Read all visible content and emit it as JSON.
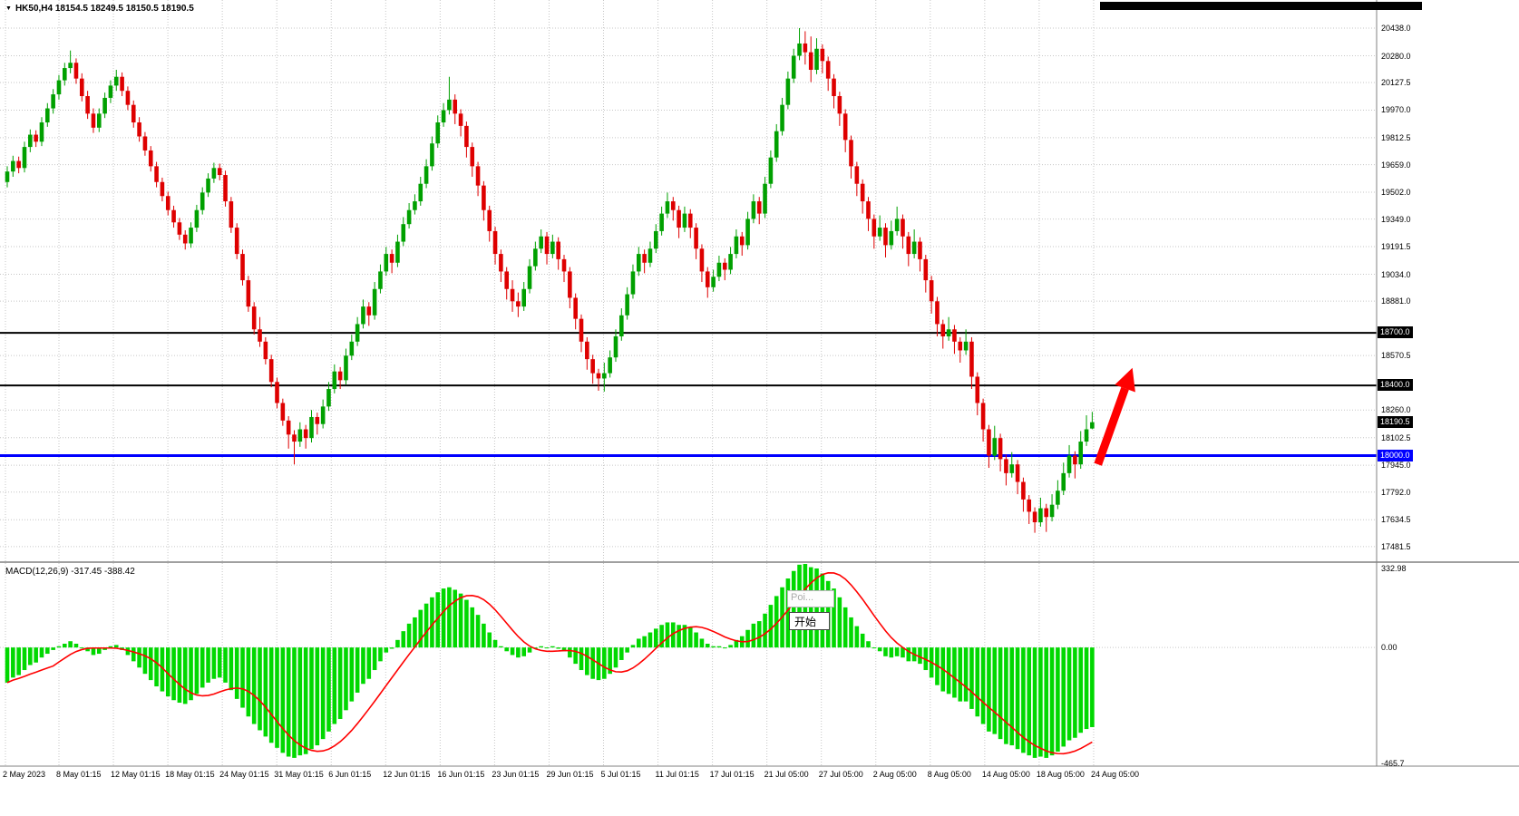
{
  "window": {
    "title": "HK50,H4 18154.5 18249.5 18150.5 18190.5",
    "dropdown_icon": "▼"
  },
  "popup": {
    "suggestion": "Poi...",
    "start_label": "开始"
  },
  "chart_data": {
    "type": "candlestick",
    "title": "HK50,H4",
    "symbol": "HK50",
    "timeframe": "H4",
    "last_ohlc": {
      "open": 18154.5,
      "high": 18249.5,
      "low": 18150.5,
      "close": 18190.5
    },
    "grid": true,
    "price_axis": {
      "ylim": [
        17403,
        20598
      ],
      "ticks": [
        "20438.0",
        "20280.0",
        "20127.5",
        "19970.0",
        "19812.5",
        "19659.0",
        "19502.0",
        "19349.0",
        "19191.5",
        "19034.0",
        "18881.0",
        "18570.5",
        "18260.0",
        "18102.5",
        "17945.0",
        "17792.0",
        "17634.5",
        "17481.5"
      ]
    },
    "time_axis": {
      "labels": [
        "2 May 2023",
        "8 May 01:15",
        "12 May 01:15",
        "18 May 01:15",
        "24 May 01:15",
        "31 May 01:15",
        "6 Jun 01:15",
        "12 Jun 01:15",
        "16 Jun 01:15",
        "23 Jun 01:15",
        "29 Jun 01:15",
        "5 Jul 01:15",
        "11 Jul 01:15",
        "17 Jul 01:15",
        "21 Jul 05:00",
        "27 Jul 05:00",
        "2 Aug 05:00",
        "8 Aug 05:00",
        "14 Aug 05:00",
        "18 Aug 05:00",
        "24 Aug 05:00"
      ]
    },
    "price_lines": [
      {
        "value": 18700,
        "label": "18700.0",
        "color": "#000000",
        "width": 2
      },
      {
        "value": 18400,
        "label": "18400.0",
        "color": "#000000",
        "width": 2
      },
      {
        "value": 18000,
        "label": "18000.0",
        "color": "#0000FF",
        "width": 3
      }
    ],
    "current_price": {
      "value": 18190.5,
      "label": "18190.5",
      "badge_color": "#000000"
    },
    "colors": {
      "bull": "#00A000",
      "bear": "#DE0000",
      "hist": "#00D800",
      "signal": "#FF0000",
      "grid": "#C6C6C6",
      "border": "#808080",
      "arrow": "#FF0000"
    },
    "annotations": {
      "arrow": {
        "type": "up-arrow",
        "color": "#FF0000",
        "from": {
          "bar": 190,
          "price": 17950
        },
        "to": {
          "bar": 196,
          "price": 18500
        }
      }
    },
    "candles": [
      [
        19560,
        19650,
        19530,
        19620
      ],
      [
        19620,
        19710,
        19590,
        19680
      ],
      [
        19680,
        19705,
        19610,
        19640
      ],
      [
        19640,
        19790,
        19615,
        19760
      ],
      [
        19760,
        19860,
        19730,
        19830
      ],
      [
        19830,
        19855,
        19760,
        19790
      ],
      [
        19790,
        19930,
        19765,
        19900
      ],
      [
        19900,
        20010,
        19875,
        19980
      ],
      [
        19980,
        20090,
        19950,
        20060
      ],
      [
        20060,
        20170,
        20030,
        20140
      ],
      [
        20140,
        20240,
        20110,
        20210
      ],
      [
        20210,
        20310,
        20180,
        20240
      ],
      [
        20240,
        20265,
        20120,
        20150
      ],
      [
        20150,
        20180,
        20020,
        20050
      ],
      [
        20050,
        20080,
        19920,
        19950
      ],
      [
        19950,
        19980,
        19840,
        19870
      ],
      [
        19870,
        19980,
        19845,
        19950
      ],
      [
        19950,
        20070,
        19925,
        20040
      ],
      [
        20040,
        20140,
        20010,
        20110
      ],
      [
        20110,
        20200,
        20080,
        20160
      ],
      [
        20160,
        20185,
        20050,
        20080
      ],
      [
        20080,
        20105,
        19970,
        20000
      ],
      [
        20000,
        20025,
        19870,
        19900
      ],
      [
        19900,
        19930,
        19790,
        19820
      ],
      [
        19820,
        19845,
        19710,
        19740
      ],
      [
        19740,
        19765,
        19620,
        19650
      ],
      [
        19650,
        19675,
        19530,
        19560
      ],
      [
        19560,
        19585,
        19450,
        19480
      ],
      [
        19480,
        19505,
        19370,
        19400
      ],
      [
        19400,
        19425,
        19300,
        19330
      ],
      [
        19330,
        19355,
        19230,
        19260
      ],
      [
        19260,
        19285,
        19175,
        19210
      ],
      [
        19210,
        19330,
        19185,
        19300
      ],
      [
        19300,
        19430,
        19275,
        19400
      ],
      [
        19400,
        19530,
        19375,
        19500
      ],
      [
        19500,
        19610,
        19475,
        19580
      ],
      [
        19580,
        19670,
        19555,
        19640
      ],
      [
        19640,
        19665,
        19570,
        19600
      ],
      [
        19600,
        19625,
        19420,
        19450
      ],
      [
        19450,
        19475,
        19270,
        19300
      ],
      [
        19300,
        19325,
        19120,
        19150
      ],
      [
        19150,
        19175,
        18970,
        19000
      ],
      [
        19000,
        19025,
        18820,
        18850
      ],
      [
        18850,
        18875,
        18690,
        18720
      ],
      [
        18720,
        18790,
        18620,
        18650
      ],
      [
        18650,
        18675,
        18520,
        18550
      ],
      [
        18550,
        18575,
        18390,
        18420
      ],
      [
        18420,
        18445,
        18270,
        18300
      ],
      [
        18300,
        18325,
        18170,
        18200
      ],
      [
        18200,
        18225,
        18040,
        18120
      ],
      [
        18120,
        18145,
        17950,
        18080
      ],
      [
        18080,
        18190,
        18050,
        18150
      ],
      [
        18150,
        18175,
        18040,
        18100
      ],
      [
        18100,
        18260,
        18075,
        18220
      ],
      [
        18220,
        18245,
        18120,
        18180
      ],
      [
        18180,
        18320,
        18155,
        18280
      ],
      [
        18280,
        18420,
        18255,
        18380
      ],
      [
        18380,
        18520,
        18355,
        18480
      ],
      [
        18480,
        18505,
        18380,
        18430
      ],
      [
        18430,
        18610,
        18405,
        18570
      ],
      [
        18570,
        18690,
        18545,
        18650
      ],
      [
        18650,
        18790,
        18625,
        18750
      ],
      [
        18750,
        18890,
        18725,
        18850
      ],
      [
        18850,
        18875,
        18740,
        18800
      ],
      [
        18800,
        18990,
        18775,
        18950
      ],
      [
        18950,
        19090,
        18925,
        19050
      ],
      [
        19050,
        19190,
        19025,
        19150
      ],
      [
        19150,
        19175,
        19040,
        19100
      ],
      [
        19100,
        19260,
        19075,
        19220
      ],
      [
        19220,
        19360,
        19195,
        19320
      ],
      [
        19320,
        19440,
        19295,
        19400
      ],
      [
        19400,
        19490,
        19375,
        19450
      ],
      [
        19450,
        19590,
        19425,
        19550
      ],
      [
        19550,
        19690,
        19525,
        19650
      ],
      [
        19650,
        19820,
        19625,
        19780
      ],
      [
        19780,
        19940,
        19755,
        19900
      ],
      [
        19900,
        20010,
        19875,
        19970
      ],
      [
        19970,
        20160,
        19945,
        20030
      ],
      [
        20030,
        20060,
        19890,
        19950
      ],
      [
        19950,
        19975,
        19820,
        19880
      ],
      [
        19880,
        19905,
        19700,
        19760
      ],
      [
        19760,
        19785,
        19590,
        19650
      ],
      [
        19650,
        19675,
        19480,
        19540
      ],
      [
        19540,
        19565,
        19340,
        19400
      ],
      [
        19400,
        19425,
        19220,
        19280
      ],
      [
        19280,
        19305,
        19090,
        19150
      ],
      [
        19150,
        19175,
        18990,
        19050
      ],
      [
        19050,
        19075,
        18890,
        18950
      ],
      [
        18950,
        19000,
        18820,
        18880
      ],
      [
        18880,
        18930,
        18790,
        18850
      ],
      [
        18850,
        18990,
        18825,
        18950
      ],
      [
        18950,
        19120,
        18925,
        19080
      ],
      [
        19080,
        19220,
        19055,
        19180
      ],
      [
        19180,
        19290,
        19155,
        19250
      ],
      [
        19250,
        19275,
        19090,
        19150
      ],
      [
        19150,
        19260,
        19125,
        19220
      ],
      [
        19220,
        19245,
        19060,
        19120
      ],
      [
        19120,
        19145,
        18990,
        19050
      ],
      [
        19050,
        19075,
        18840,
        18900
      ],
      [
        18900,
        18925,
        18720,
        18780
      ],
      [
        18780,
        18805,
        18590,
        18650
      ],
      [
        18650,
        18675,
        18490,
        18550
      ],
      [
        18550,
        18575,
        18410,
        18470
      ],
      [
        18470,
        18495,
        18370,
        18440
      ],
      [
        18440,
        18530,
        18365,
        18470
      ],
      [
        18470,
        18600,
        18445,
        18560
      ],
      [
        18560,
        18720,
        18535,
        18680
      ],
      [
        18680,
        18840,
        18655,
        18800
      ],
      [
        18800,
        18960,
        18775,
        18920
      ],
      [
        18920,
        19090,
        18895,
        19050
      ],
      [
        19050,
        19190,
        19025,
        19150
      ],
      [
        19150,
        19175,
        19040,
        19100
      ],
      [
        19100,
        19220,
        19075,
        19180
      ],
      [
        19180,
        19320,
        19155,
        19280
      ],
      [
        19280,
        19420,
        19255,
        19380
      ],
      [
        19380,
        19500,
        19355,
        19450
      ],
      [
        19450,
        19475,
        19340,
        19400
      ],
      [
        19400,
        19425,
        19240,
        19300
      ],
      [
        19300,
        19420,
        19275,
        19380
      ],
      [
        19380,
        19405,
        19240,
        19300
      ],
      [
        19300,
        19325,
        19120,
        19180
      ],
      [
        19180,
        19205,
        18990,
        19050
      ],
      [
        19050,
        19075,
        18900,
        18960
      ],
      [
        18960,
        19060,
        18935,
        19020
      ],
      [
        19020,
        19140,
        18995,
        19100
      ],
      [
        19100,
        19125,
        19000,
        19060
      ],
      [
        19060,
        19190,
        19035,
        19150
      ],
      [
        19150,
        19290,
        19125,
        19250
      ],
      [
        19250,
        19275,
        19140,
        19200
      ],
      [
        19200,
        19390,
        19175,
        19350
      ],
      [
        19350,
        19490,
        19325,
        19450
      ],
      [
        19450,
        19475,
        19320,
        19380
      ],
      [
        19380,
        19590,
        19355,
        19550
      ],
      [
        19550,
        19740,
        19525,
        19700
      ],
      [
        19700,
        19890,
        19675,
        19850
      ],
      [
        19850,
        20040,
        19825,
        20000
      ],
      [
        20000,
        20190,
        19975,
        20150
      ],
      [
        20150,
        20320,
        20125,
        20280
      ],
      [
        20280,
        20438,
        20255,
        20350
      ],
      [
        20350,
        20420,
        20230,
        20300
      ],
      [
        20300,
        20390,
        20130,
        20200
      ],
      [
        20200,
        20380,
        20175,
        20320
      ],
      [
        20320,
        20345,
        20180,
        20250
      ],
      [
        20250,
        20275,
        20080,
        20150
      ],
      [
        20150,
        20175,
        19980,
        20050
      ],
      [
        20050,
        20075,
        19880,
        19950
      ],
      [
        19950,
        19975,
        19730,
        19800
      ],
      [
        19800,
        19825,
        19580,
        19650
      ],
      [
        19650,
        19675,
        19480,
        19550
      ],
      [
        19550,
        19575,
        19380,
        19450
      ],
      [
        19450,
        19475,
        19280,
        19350
      ],
      [
        19350,
        19375,
        19180,
        19250
      ],
      [
        19250,
        19370,
        19225,
        19300
      ],
      [
        19300,
        19325,
        19130,
        19200
      ],
      [
        19200,
        19340,
        19175,
        19280
      ],
      [
        19280,
        19420,
        19255,
        19350
      ],
      [
        19350,
        19375,
        19180,
        19250
      ],
      [
        19250,
        19275,
        19080,
        19150
      ],
      [
        19150,
        19290,
        19125,
        19220
      ],
      [
        19220,
        19245,
        19050,
        19120
      ],
      [
        19120,
        19145,
        18930,
        19000
      ],
      [
        19000,
        19025,
        18810,
        18880
      ],
      [
        18880,
        18905,
        18680,
        18750
      ],
      [
        18750,
        18775,
        18610,
        18680
      ],
      [
        18680,
        18790,
        18655,
        18720
      ],
      [
        18720,
        18745,
        18580,
        18650
      ],
      [
        18650,
        18675,
        18530,
        18600
      ],
      [
        18600,
        18720,
        18575,
        18650
      ],
      [
        18650,
        18675,
        18380,
        18450
      ],
      [
        18450,
        18475,
        18230,
        18300
      ],
      [
        18300,
        18325,
        18080,
        18150
      ],
      [
        18150,
        18175,
        17930,
        18000
      ],
      [
        18000,
        18170,
        17975,
        18100
      ],
      [
        18100,
        18125,
        17910,
        17980
      ],
      [
        17980,
        18005,
        17830,
        17900
      ],
      [
        17900,
        18020,
        17875,
        17950
      ],
      [
        17950,
        17975,
        17780,
        17850
      ],
      [
        17850,
        17875,
        17680,
        17750
      ],
      [
        17750,
        17775,
        17610,
        17680
      ],
      [
        17680,
        17705,
        17560,
        17620
      ],
      [
        17620,
        17760,
        17595,
        17700
      ],
      [
        17700,
        17725,
        17565,
        17650
      ],
      [
        17650,
        17780,
        17625,
        17720
      ],
      [
        17720,
        17860,
        17695,
        17800
      ],
      [
        17800,
        17960,
        17775,
        17900
      ],
      [
        17900,
        18060,
        17875,
        18000
      ],
      [
        18000,
        18025,
        17870,
        17950
      ],
      [
        17950,
        18140,
        17925,
        18080
      ],
      [
        18080,
        18230,
        18055,
        18150
      ],
      [
        18154.5,
        18249.5,
        18150.5,
        18190.5
      ]
    ],
    "macd": {
      "label": "MACD(12,26,9)",
      "values_text": "-317.45 -388.42",
      "macd_value": -317.45,
      "signal_value": -388.42,
      "signal_period": 9,
      "scale": {
        "max": 332.98,
        "min": -465.7,
        "max_label": "332.98",
        "zero_label": "0.00",
        "min_label": "-465.7"
      },
      "histogram": [
        -140,
        -120,
        -110,
        -90,
        -70,
        -60,
        -40,
        -25,
        -10,
        5,
        15,
        25,
        15,
        0,
        -15,
        -30,
        -25,
        -10,
        5,
        10,
        -10,
        -30,
        -55,
        -80,
        -105,
        -130,
        -155,
        -175,
        -195,
        -210,
        -220,
        -225,
        -210,
        -185,
        -160,
        -140,
        -125,
        -120,
        -140,
        -170,
        -205,
        -240,
        -275,
        -305,
        -330,
        -355,
        -380,
        -400,
        -420,
        -435,
        -440,
        -430,
        -425,
        -405,
        -390,
        -365,
        -335,
        -305,
        -285,
        -250,
        -215,
        -180,
        -145,
        -125,
        -90,
        -55,
        -20,
        -5,
        30,
        65,
        95,
        120,
        150,
        175,
        200,
        220,
        235,
        240,
        230,
        215,
        190,
        160,
        130,
        95,
        60,
        30,
        5,
        -15,
        -30,
        -40,
        -35,
        -20,
        -5,
        5,
        0,
        5,
        -5,
        -15,
        -40,
        -65,
        -90,
        -110,
        -125,
        -130,
        -125,
        -105,
        -80,
        -50,
        -20,
        10,
        35,
        45,
        60,
        75,
        90,
        100,
        100,
        90,
        90,
        80,
        60,
        35,
        15,
        5,
        5,
        0,
        10,
        30,
        45,
        70,
        95,
        105,
        135,
        170,
        205,
        240,
        275,
        305,
        330,
        333,
        320,
        315,
        295,
        265,
        235,
        200,
        160,
        120,
        85,
        55,
        25,
        0,
        -15,
        -35,
        -40,
        -35,
        -40,
        -55,
        -55,
        -65,
        -90,
        -120,
        -150,
        -175,
        -185,
        -200,
        -215,
        -215,
        -245,
        -275,
        -305,
        -335,
        -345,
        -365,
        -385,
        -390,
        -405,
        -420,
        -430,
        -440,
        -435,
        -440,
        -430,
        -415,
        -395,
        -370,
        -360,
        -340,
        -325,
        -317.45
      ]
    }
  }
}
